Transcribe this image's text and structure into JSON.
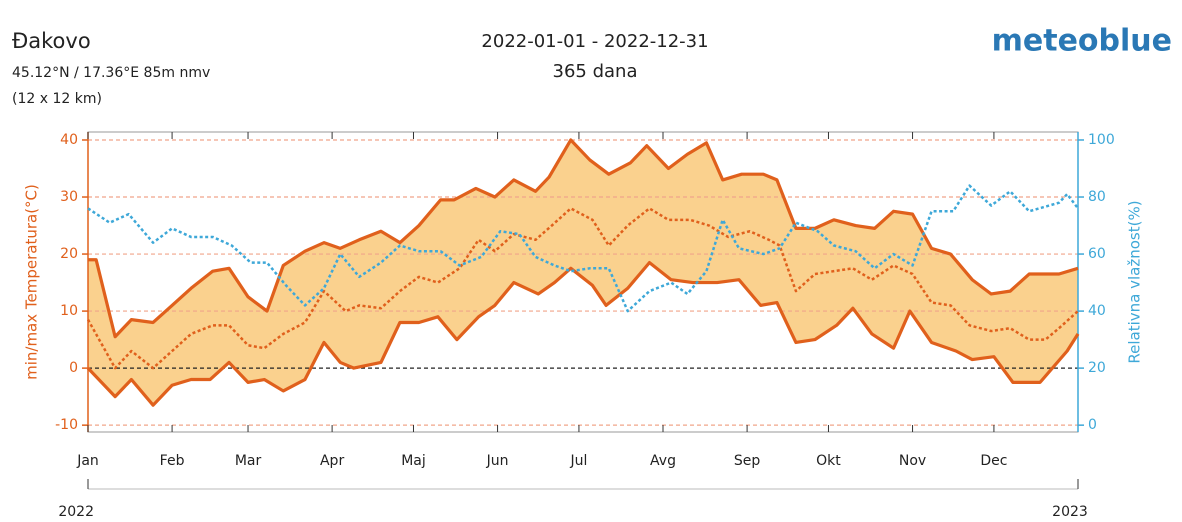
{
  "header": {
    "location": "Đakovo",
    "coordinates": "45.12°N / 17.36°E   85m nmv",
    "resolution": "(12 x 12 km)",
    "period": "2022-01-01 - 2022-12-31",
    "days": "365 dana",
    "brand": "meteoblue"
  },
  "chart_data": {
    "type": "line",
    "ylabel": "min/max Temperatura(°C)",
    "y2label": "Relativna vlažnost(%)",
    "xlim": [
      0,
      365
    ],
    "xticks": [
      {
        "value": 0,
        "label": "Jan"
      },
      {
        "value": 31,
        "label": "Feb"
      },
      {
        "value": 59,
        "label": "Mar"
      },
      {
        "value": 90,
        "label": "Apr"
      },
      {
        "value": 120,
        "label": "Maj"
      },
      {
        "value": 151,
        "label": "Jun"
      },
      {
        "value": 181,
        "label": "Jul"
      },
      {
        "value": 212,
        "label": "Avg"
      },
      {
        "value": 243,
        "label": "Sep"
      },
      {
        "value": 273,
        "label": "Okt"
      },
      {
        "value": 304,
        "label": "Nov"
      },
      {
        "value": 334,
        "label": "Dec"
      }
    ],
    "year_ticks": [
      {
        "value": 0,
        "label": "2022"
      },
      {
        "value": 365,
        "label": "2023"
      }
    ],
    "ylim": [
      -11.2,
      41.4
    ],
    "yticks": [
      -10,
      0,
      10,
      20,
      30,
      40
    ],
    "y2lim": [
      -2.4,
      102.8
    ],
    "y2ticks": [
      0,
      20,
      40,
      60,
      80,
      100
    ],
    "grid": true,
    "band_color": "#f9c97a",
    "series": [
      {
        "name": "max",
        "color": "#e0601c",
        "style": "solid",
        "x": [
          0,
          3,
          10,
          16,
          24,
          31,
          38,
          46,
          52,
          59,
          66,
          72,
          80,
          87,
          93,
          100,
          108,
          115,
          122,
          130,
          135,
          143,
          150,
          157,
          165,
          170,
          178,
          185,
          192,
          200,
          206,
          214,
          221,
          228,
          234,
          241,
          249,
          254,
          261,
          268,
          275,
          283,
          290,
          297,
          304,
          311,
          318,
          326,
          333,
          340,
          347,
          358,
          365
        ],
        "values": [
          19,
          19,
          5.5,
          8.5,
          8,
          11,
          14,
          17,
          17.5,
          12.5,
          10,
          18,
          20.5,
          22,
          21,
          22.5,
          24,
          22,
          25,
          29.5,
          29.5,
          31.5,
          30,
          33,
          31,
          33.5,
          40,
          36.5,
          34,
          36,
          39,
          35,
          37.5,
          39.5,
          33,
          34,
          34,
          33,
          24.5,
          24.5,
          26,
          25,
          24.5,
          27.5,
          27,
          21,
          20,
          15.5,
          13,
          13.5,
          16.5,
          16.5,
          17.5
        ]
      },
      {
        "name": "mean",
        "color": "#e0601c",
        "style": "dotted",
        "x": [
          0,
          10,
          16,
          24,
          31,
          38,
          46,
          52,
          59,
          65,
          72,
          80,
          87,
          95,
          100,
          108,
          115,
          122,
          129,
          137,
          144,
          150,
          157,
          165,
          171,
          178,
          186,
          192,
          199,
          207,
          214,
          222,
          229,
          236,
          244,
          251,
          255,
          261,
          268,
          275,
          282,
          289,
          297,
          304,
          311,
          318,
          325,
          333,
          340,
          347,
          353,
          358,
          365
        ],
        "values": [
          8.5,
          0,
          3,
          0,
          3,
          6,
          7.5,
          7.5,
          4,
          3.5,
          6,
          8,
          13.5,
          10,
          11,
          10.5,
          13.5,
          16,
          15,
          17.5,
          22.5,
          20.5,
          23.5,
          22.5,
          25,
          28,
          26,
          21.5,
          25,
          28,
          26,
          26,
          25,
          23,
          24,
          22.5,
          21.5,
          13.5,
          16.5,
          17,
          17.5,
          15.5,
          18,
          16.5,
          11.5,
          11,
          7.5,
          6.5,
          7,
          5,
          5,
          7,
          10
        ]
      },
      {
        "name": "min",
        "color": "#e0601c",
        "style": "solid",
        "x": [
          0,
          10,
          16,
          24,
          31,
          38,
          45,
          52,
          59,
          65,
          72,
          80,
          87,
          93,
          98,
          108,
          115,
          122,
          129,
          136,
          144,
          150,
          157,
          166,
          172,
          178,
          186,
          191,
          199,
          207,
          215,
          223,
          232,
          240,
          248,
          254,
          261,
          268,
          276,
          282,
          289,
          297,
          303,
          311,
          320,
          326,
          334,
          341,
          351,
          361,
          365
        ],
        "values": [
          0,
          -5,
          -2,
          -6.5,
          -3,
          -2,
          -2,
          1,
          -2.5,
          -2,
          -4,
          -2,
          4.5,
          1,
          0,
          1,
          8,
          8,
          9,
          5,
          9,
          11,
          15,
          13,
          15,
          17.5,
          14.5,
          11,
          14,
          18.5,
          15.5,
          15,
          15,
          15.5,
          11,
          11.5,
          4.5,
          5,
          7.5,
          10.5,
          6,
          3.5,
          10,
          4.5,
          3,
          1.5,
          2,
          -2.5,
          -2.5,
          3,
          6
        ]
      },
      {
        "name": "humidity",
        "color": "#3ea8d8",
        "style": "dotted",
        "axis": "y2",
        "x": [
          0,
          8,
          15,
          24,
          31,
          38,
          46,
          53,
          60,
          66,
          73,
          80,
          87,
          93,
          100,
          108,
          115,
          122,
          130,
          137,
          145,
          152,
          159,
          165,
          172,
          178,
          185,
          192,
          199,
          207,
          215,
          221,
          228,
          234,
          240,
          249,
          255,
          261,
          269,
          275,
          283,
          290,
          297,
          304,
          311,
          319,
          325,
          333,
          340,
          347,
          358,
          361,
          365
        ],
        "values": [
          76,
          71,
          74,
          64,
          69,
          66,
          66,
          63,
          57,
          57,
          49,
          42,
          48,
          60,
          52,
          57,
          63,
          61,
          61,
          56,
          59,
          68,
          67,
          59,
          56,
          54,
          55,
          55,
          40,
          47,
          50,
          46,
          54,
          72,
          62,
          60,
          62,
          71,
          68,
          63,
          61,
          55,
          60,
          56,
          75,
          75,
          84,
          77,
          82,
          75,
          78,
          81,
          76
        ]
      }
    ]
  }
}
